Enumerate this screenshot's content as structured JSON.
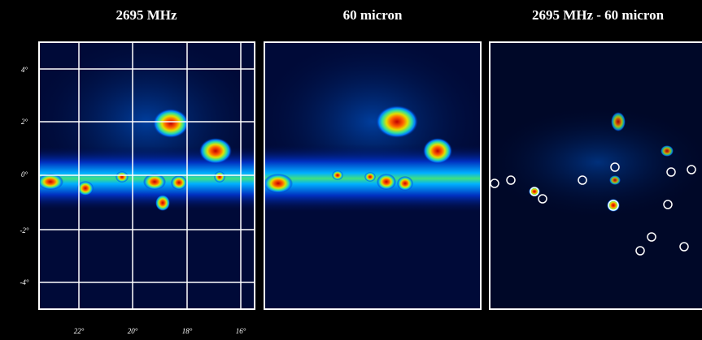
{
  "panels": [
    {
      "title": "2695 MHz"
    },
    {
      "title": "60 micron"
    },
    {
      "title": "2695 MHz - 60 micron"
    }
  ],
  "axes": {
    "y_labels": [
      "4°",
      "2°",
      "0°",
      "-2°",
      "-4°"
    ],
    "x_labels": [
      "22°",
      "20°",
      "18°",
      "16°"
    ]
  }
}
